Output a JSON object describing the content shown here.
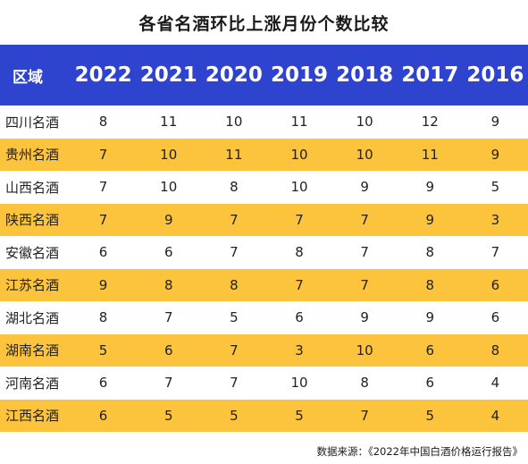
{
  "chart_data": {
    "type": "table",
    "title": "各省名酒环比上涨月份个数比较",
    "row_header_label": "区域",
    "columns": [
      "2022",
      "2021",
      "2020",
      "2019",
      "2018",
      "2017",
      "2016"
    ],
    "rows": [
      {
        "region": "四川名酒",
        "values": [
          "8",
          "11",
          "10",
          "11",
          "10",
          "12",
          "9"
        ]
      },
      {
        "region": "贵州名酒",
        "values": [
          "7",
          "10",
          "11",
          "10",
          "10",
          "11",
          "9"
        ]
      },
      {
        "region": "山西名酒",
        "values": [
          "7",
          "10",
          "8",
          "10",
          "9",
          "9",
          "5"
        ]
      },
      {
        "region": "陕西名酒",
        "values": [
          "7",
          "9",
          "7",
          "7",
          "7",
          "9",
          "3"
        ]
      },
      {
        "region": "安徽名酒",
        "values": [
          "6",
          "6",
          "7",
          "8",
          "7",
          "8",
          "7"
        ]
      },
      {
        "region": "江苏名酒",
        "values": [
          "9",
          "8",
          "8",
          "7",
          "7",
          "8",
          "6"
        ]
      },
      {
        "region": "湖北名酒",
        "values": [
          "8",
          "7",
          "5",
          "6",
          "9",
          "9",
          "6"
        ]
      },
      {
        "region": "湖南名酒",
        "values": [
          "5",
          "6",
          "7",
          "3",
          "10",
          "6",
          "8"
        ]
      },
      {
        "region": "河南名酒",
        "values": [
          "6",
          "7",
          "7",
          "10",
          "8",
          "6",
          "4"
        ]
      },
      {
        "region": "江西名酒",
        "values": [
          "6",
          "5",
          "5",
          "5",
          "7",
          "5",
          "4"
        ]
      }
    ],
    "source": "数据来源：《2022年中国白酒价格运行报告》"
  },
  "colors": {
    "header_bg": "#2e44cf",
    "header_text": "#ffffff",
    "stripe": "#fcc33d",
    "row_bg": "#ffffff"
  }
}
